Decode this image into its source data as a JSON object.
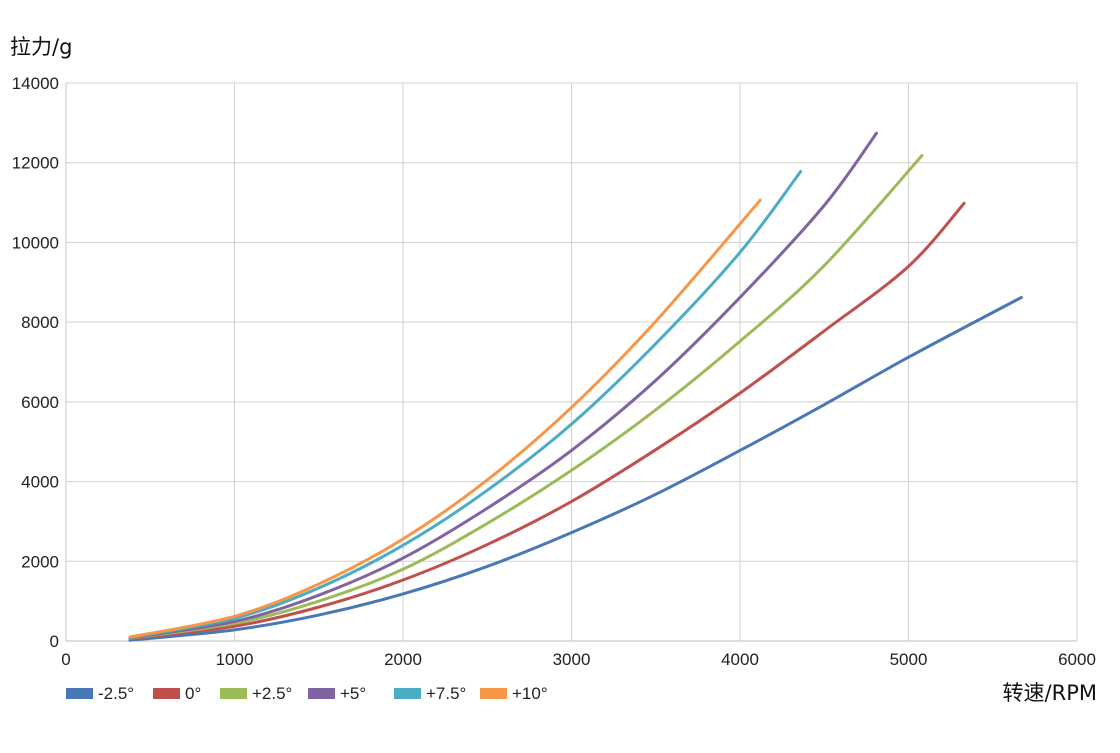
{
  "chart_data": {
    "type": "line",
    "title": "",
    "ylabel": "拉力/g",
    "xlabel": "转速/RPM",
    "xlim": [
      0,
      6000
    ],
    "ylim": [
      0,
      14000
    ],
    "x_ticks": [
      "0",
      "1000",
      "2000",
      "3000",
      "4000",
      "5000",
      "6000"
    ],
    "y_ticks": [
      "0",
      "2000",
      "4000",
      "6000",
      "8000",
      "10000",
      "12000",
      "14000"
    ],
    "grid": true,
    "legend_position": "bottom-left",
    "series": [
      {
        "name": "-2.5°",
        "color": "#4a78b4",
        "points": [
          [
            380,
            20
          ],
          [
            1000,
            280
          ],
          [
            1500,
            650
          ],
          [
            2000,
            1180
          ],
          [
            2500,
            1870
          ],
          [
            3000,
            2720
          ],
          [
            3500,
            3680
          ],
          [
            4000,
            4780
          ],
          [
            4500,
            5930
          ],
          [
            5000,
            7120
          ],
          [
            5670,
            8620
          ]
        ]
      },
      {
        "name": "0°",
        "color": "#c0504d",
        "points": [
          [
            380,
            60
          ],
          [
            1000,
            370
          ],
          [
            1500,
            850
          ],
          [
            2000,
            1530
          ],
          [
            2500,
            2420
          ],
          [
            3000,
            3500
          ],
          [
            3500,
            4800
          ],
          [
            4000,
            6220
          ],
          [
            4500,
            7780
          ],
          [
            5000,
            9400
          ],
          [
            5330,
            10980
          ]
        ]
      },
      {
        "name": "+2.5°",
        "color": "#9bbb59",
        "points": [
          [
            380,
            70
          ],
          [
            1000,
            440
          ],
          [
            1500,
            1000
          ],
          [
            2000,
            1800
          ],
          [
            2500,
            2950
          ],
          [
            3000,
            4280
          ],
          [
            3500,
            5800
          ],
          [
            4000,
            7520
          ],
          [
            4500,
            9420
          ],
          [
            5080,
            12180
          ]
        ]
      },
      {
        "name": "+5°",
        "color": "#8064a2",
        "points": [
          [
            380,
            80
          ],
          [
            1000,
            490
          ],
          [
            1500,
            1150
          ],
          [
            2000,
            2080
          ],
          [
            2500,
            3330
          ],
          [
            3000,
            4780
          ],
          [
            3500,
            6540
          ],
          [
            4000,
            8620
          ],
          [
            4500,
            10930
          ],
          [
            4810,
            12740
          ]
        ]
      },
      {
        "name": "+7.5°",
        "color": "#4bacc6",
        "points": [
          [
            380,
            90
          ],
          [
            1000,
            570
          ],
          [
            1500,
            1330
          ],
          [
            2000,
            2400
          ],
          [
            2500,
            3780
          ],
          [
            3000,
            5440
          ],
          [
            3500,
            7460
          ],
          [
            4000,
            9750
          ],
          [
            4360,
            11780
          ]
        ]
      },
      {
        "name": "+10°",
        "color": "#f79646",
        "points": [
          [
            380,
            100
          ],
          [
            1000,
            620
          ],
          [
            1500,
            1430
          ],
          [
            2000,
            2560
          ],
          [
            2500,
            4040
          ],
          [
            3000,
            5860
          ],
          [
            3500,
            8020
          ],
          [
            4120,
            11060
          ]
        ]
      }
    ]
  }
}
